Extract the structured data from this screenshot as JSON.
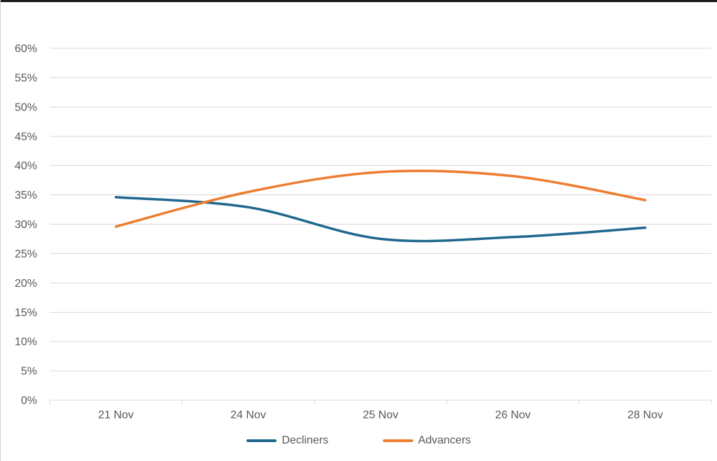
{
  "window": {
    "top_edge_color": "#1b1b1b",
    "background": "#ffffff"
  },
  "chart_data": {
    "type": "line",
    "title": "",
    "xlabel": "",
    "ylabel": "",
    "categories": [
      "21 Nov",
      "24 Nov",
      "25 Nov",
      "26 Nov",
      "28 Nov"
    ],
    "series": [
      {
        "name": "Decliners",
        "color": "#20688E",
        "values": [
          34.6,
          32.9,
          27.5,
          27.8,
          29.4
        ]
      },
      {
        "name": "Advancers",
        "color": "#ED7D31",
        "values": [
          29.6,
          35.5,
          38.9,
          38.2,
          34.1
        ]
      }
    ],
    "y_axis": {
      "min": 0,
      "max": 60,
      "step": 5,
      "tick_suffix": "%",
      "tick_labels": [
        "0%",
        "5%",
        "10%",
        "15%",
        "20%",
        "25%",
        "30%",
        "35%",
        "40%",
        "45%",
        "50%",
        "55%",
        "60%"
      ]
    },
    "x_axis": {
      "tick_labels": [
        "21 Nov",
        "24 Nov",
        "25 Nov",
        "26 Nov",
        "28 Nov"
      ]
    },
    "smooth_lines": true,
    "grid": true,
    "legend_position": "bottom",
    "colors": {
      "gridline": "#D9D9D9",
      "axis_line": "#D9D9D9",
      "axis_text": "#595959"
    }
  }
}
